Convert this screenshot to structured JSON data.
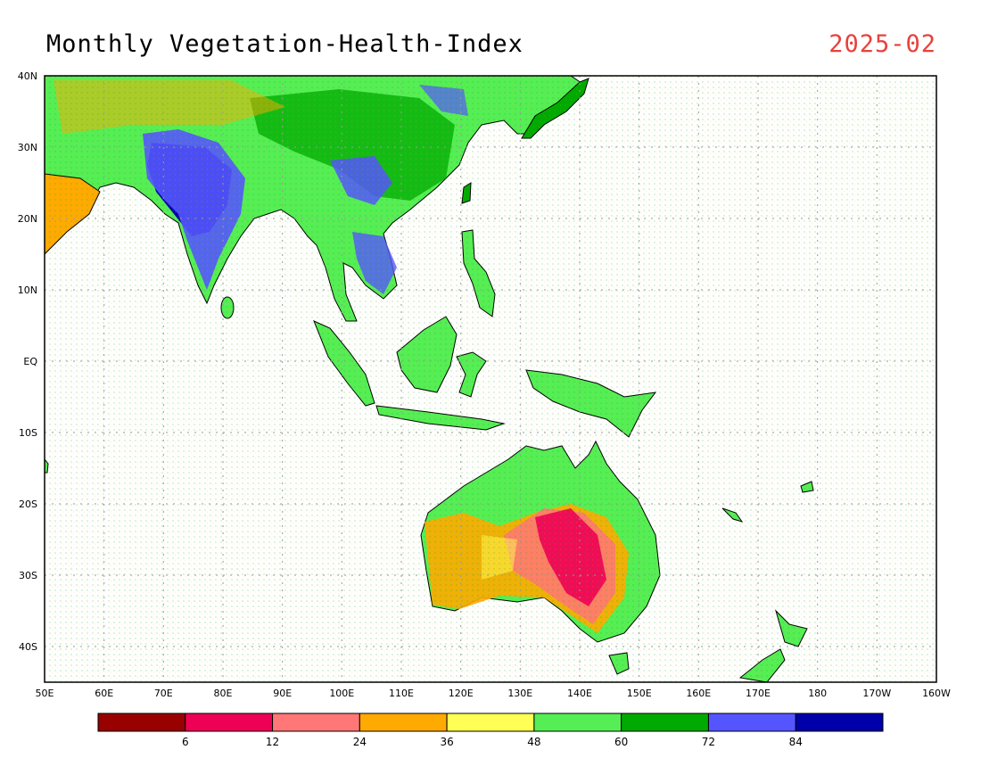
{
  "title": "Monthly Vegetation-Health-Index",
  "date": "2025-02",
  "colors": {
    "date_text": "#e8413c",
    "ocean": "#ffffff",
    "grid": "#9a9a9a",
    "coast": "#000000"
  },
  "map": {
    "lon_ticks": [
      "50E",
      "60E",
      "70E",
      "80E",
      "90E",
      "100E",
      "110E",
      "120E",
      "130E",
      "140E",
      "150E",
      "160E",
      "170E",
      "180",
      "170W",
      "160W"
    ],
    "lat_ticks": [
      "40N",
      "30N",
      "20N",
      "10N",
      "EQ",
      "10S",
      "20S",
      "30S",
      "40S"
    ]
  },
  "colorbar": {
    "colors": [
      "#990000",
      "#ee0055",
      "#ff7777",
      "#ffaa00",
      "#ffff55",
      "#55ee55",
      "#00aa00",
      "#5555ff",
      "#0000aa"
    ],
    "labels": [
      "6",
      "12",
      "24",
      "36",
      "48",
      "60",
      "72",
      "84"
    ]
  }
}
